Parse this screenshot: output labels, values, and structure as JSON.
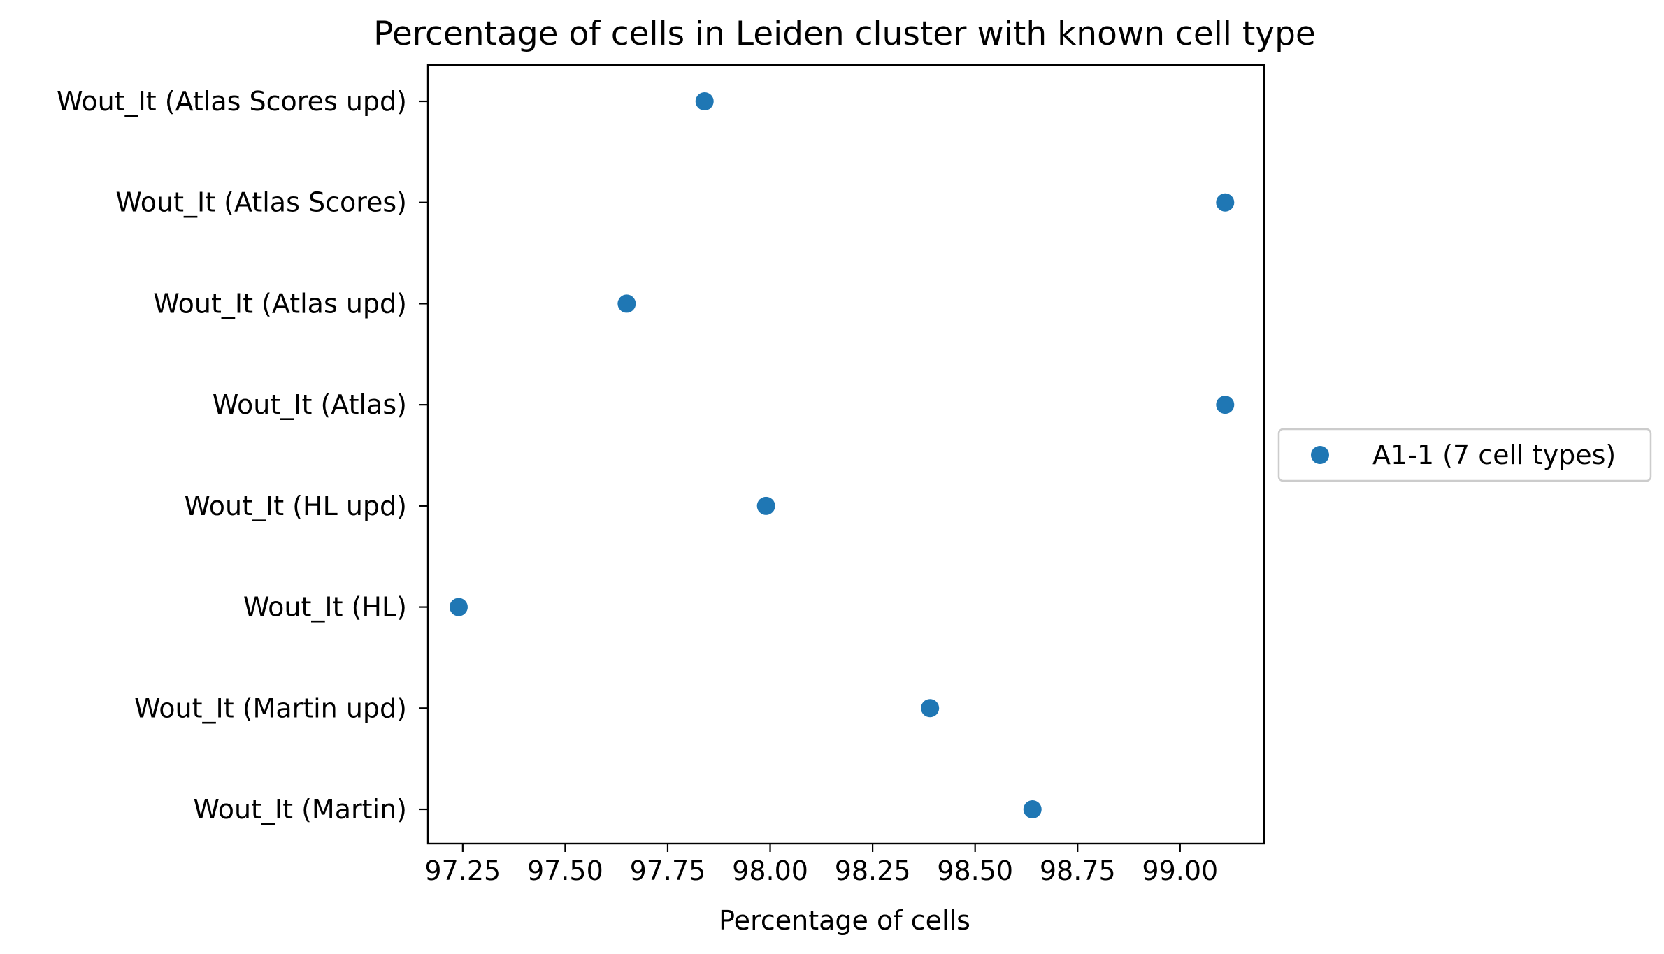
{
  "chart_data": {
    "type": "scatter",
    "title": "Percentage of cells in Leiden cluster with known cell type",
    "xlabel": "Percentage of cells",
    "ylabel": "",
    "xlim": [
      97.165,
      99.205
    ],
    "x_ticks": [
      97.25,
      97.5,
      97.75,
      98.0,
      98.25,
      98.5,
      98.75,
      99.0
    ],
    "x_tick_labels": [
      "97.25",
      "97.50",
      "97.75",
      "98.00",
      "98.25",
      "98.50",
      "98.75",
      "99.00"
    ],
    "categories": [
      "Wout_It (Atlas Scores upd)",
      "Wout_It (Atlas Scores)",
      "Wout_It (Atlas upd)",
      "Wout_It (Atlas)",
      "Wout_It (HL upd)",
      "Wout_It (HL)",
      "Wout_It (Martin upd)",
      "Wout_It (Martin)"
    ],
    "series": [
      {
        "name": "A1-1 (7 cell types)",
        "color": "#1f77b4",
        "values": [
          97.84,
          99.11,
          97.65,
          99.11,
          97.99,
          97.24,
          98.39,
          98.64
        ]
      }
    ],
    "grid": false,
    "legend_position": "center-right outside"
  }
}
